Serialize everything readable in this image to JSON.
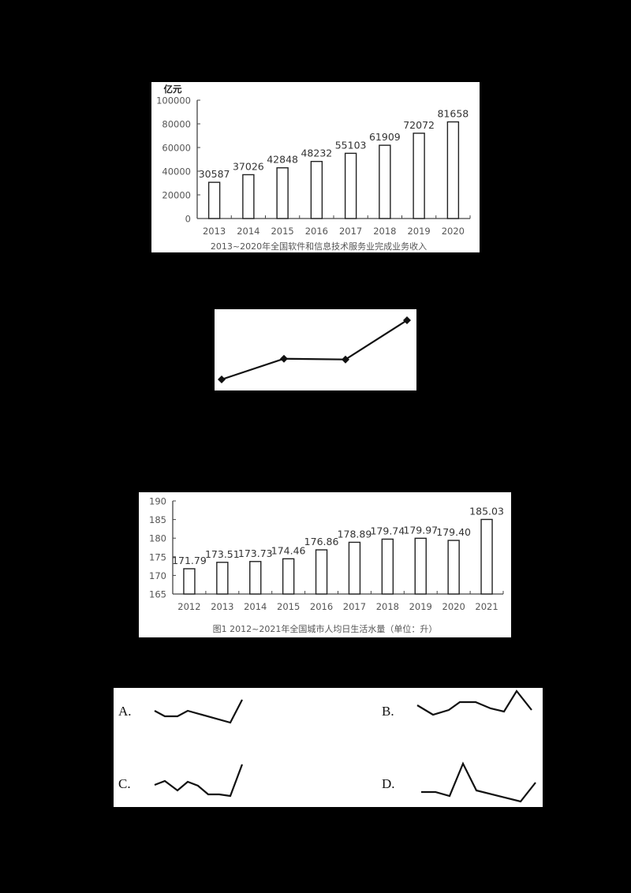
{
  "chart_data": [
    {
      "type": "bar",
      "title": "2013~2020年全国软件和信息技术服务业完成业务收入",
      "ylabel": "亿元",
      "xlabel": "",
      "categories": [
        "2013",
        "2014",
        "2015",
        "2016",
        "2017",
        "2018",
        "2019",
        "2020"
      ],
      "values": [
        30587,
        37026,
        42848,
        48232,
        55103,
        61909,
        72072,
        81658
      ],
      "value_labels": [
        "30587",
        "37026",
        "42848",
        "48232",
        "55103",
        "61909",
        "72072",
        "81658"
      ],
      "yticks": [
        "0",
        "20000",
        "40000",
        "60000",
        "80000",
        "100000"
      ],
      "ylim": [
        0,
        100000
      ],
      "grid": false,
      "legend": "none"
    },
    {
      "type": "line",
      "title": "",
      "xlabel": "",
      "ylabel": "",
      "note": "unlabeled line with diamond markers",
      "points": [
        {
          "x": 1,
          "y": 1.0
        },
        {
          "x": 2,
          "y": 2.4
        },
        {
          "x": 3,
          "y": 2.35
        },
        {
          "x": 4,
          "y": 5.0
        }
      ],
      "marker": "diamond",
      "grid": false,
      "legend": "none"
    },
    {
      "type": "bar",
      "title": "图1  2012~2021年全国城市人均日生活水量（单位：升）",
      "xlabel": "",
      "ylabel": "",
      "categories": [
        "2012",
        "2013",
        "2014",
        "2015",
        "2016",
        "2017",
        "2018",
        "2019",
        "2020",
        "2021"
      ],
      "values": [
        171.79,
        173.51,
        173.73,
        174.46,
        176.86,
        178.89,
        179.74,
        179.97,
        179.4,
        185.03
      ],
      "value_labels": [
        "171.79",
        "173.51",
        "173.73",
        "174.46",
        "176.86",
        "178.89",
        "179.74",
        "179.97",
        "179.40",
        "185.03"
      ],
      "yticks": [
        "165",
        "170",
        "175",
        "180",
        "185",
        "190"
      ],
      "ylim": [
        165,
        190
      ],
      "grid": false,
      "legend": "none"
    },
    {
      "type": "line",
      "title": "options",
      "note": "four unlabeled sparkline options",
      "options": [
        {
          "label": "A.",
          "points": [
            [
              196,
              901
            ],
            [
              209,
              908
            ],
            [
              225,
              908
            ],
            [
              238,
              901
            ],
            [
              292,
              916
            ],
            [
              307,
              887
            ]
          ]
        },
        {
          "label": "B.",
          "points": [
            [
              529,
              894
            ],
            [
              549,
              906
            ],
            [
              569,
              900
            ],
            [
              583,
              890
            ],
            [
              603,
              890
            ],
            [
              622,
              898
            ],
            [
              639,
              902
            ],
            [
              655,
              876
            ],
            [
              674,
              900
            ]
          ]
        },
        {
          "label": "C.",
          "points": [
            [
              196,
              995
            ],
            [
              209,
              990
            ],
            [
              225,
              1002
            ],
            [
              238,
              991
            ],
            [
              251,
              996
            ],
            [
              264,
              1007
            ],
            [
              278,
              1007
            ],
            [
              292,
              1009
            ],
            [
              307,
              969
            ]
          ]
        },
        {
          "label": "D.",
          "points": [
            [
              534,
              1004
            ],
            [
              552,
              1004
            ],
            [
              570,
              1009
            ],
            [
              587,
              968
            ],
            [
              604,
              1002
            ],
            [
              660,
              1016
            ],
            [
              679,
              992
            ]
          ]
        }
      ]
    }
  ],
  "colors": {
    "background": "#000000",
    "panel": "#ffffff",
    "bar_stroke": "#222222",
    "axis": "#444444",
    "tick_text": "#555555",
    "line": "#111111"
  }
}
